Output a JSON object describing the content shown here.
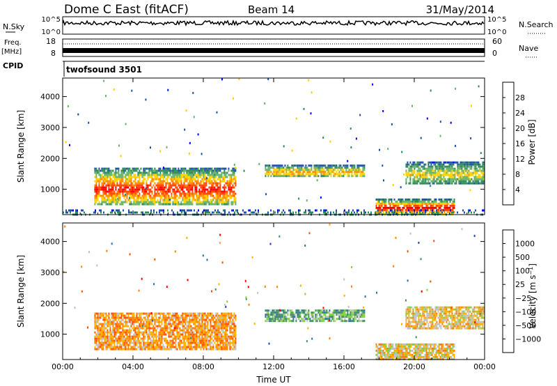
{
  "header": {
    "station": "Dome C East (fitACF)",
    "beam": "Beam 14",
    "date": "31/May/2014"
  },
  "status_panels": {
    "nsky_label": "N.Sky",
    "nsky_ticks": [
      "10^5",
      "10^0"
    ],
    "nsearch_label": "N.Search",
    "nsearch_ticks": [
      "10^5",
      "10^0"
    ],
    "freq_label": "Freq.",
    "freq_unit": "[MHz]",
    "freq_ticks": [
      "18",
      "8"
    ],
    "nave_label": "Nave",
    "nave_ticks": [
      "60",
      "0"
    ],
    "cpid_label": "CPID",
    "cpid_value": "twofsound 3501"
  },
  "colors": {
    "power_scale": [
      "#0000ff",
      "#1f4fa8",
      "#2e8b57",
      "#66b266",
      "#ffd000",
      "#ff8c00",
      "#ff4500",
      "#ff0000"
    ],
    "velocity_scale": [
      "#1f3fbf",
      "#2f6fa0",
      "#3f8f60",
      "#7fcf3f",
      "#c0c0c0",
      "#ffb000",
      "#ff8000",
      "#ff5000",
      "#ff0000"
    ]
  },
  "chart_data": [
    {
      "type": "heatmap",
      "name": "power",
      "ylabel": "Slant Range [km]",
      "x_ticks": [
        "00:00",
        "04:00",
        "08:00",
        "12:00",
        "16:00",
        "20:00",
        "00:00"
      ],
      "y_ticks": [
        "1000",
        "2000",
        "3000",
        "4000"
      ],
      "xlim_hours": [
        0,
        24
      ],
      "ylim_km": [
        180,
        4600
      ],
      "colorbar": {
        "label": "Power [dB]",
        "ticks": [
          "28",
          "24",
          "20",
          "16",
          "12",
          "8",
          "4"
        ],
        "range": [
          0,
          32
        ]
      },
      "echo_regions": [
        {
          "t0": 1.8,
          "t1": 9.8,
          "r0": 500,
          "r1": 1700,
          "peak_db": 28
        },
        {
          "t0": 11.5,
          "t1": 17.2,
          "r0": 1400,
          "r1": 1800,
          "peak_db": 20
        },
        {
          "t0": 17.8,
          "t1": 22.3,
          "r0": 200,
          "r1": 700,
          "peak_db": 30
        },
        {
          "t0": 19.5,
          "t1": 24.0,
          "r0": 1200,
          "r1": 1900,
          "peak_db": 16
        },
        {
          "t0": 0.0,
          "t1": 24.0,
          "r0": 180,
          "r1": 350,
          "peak_db": 6
        }
      ]
    },
    {
      "type": "heatmap",
      "name": "velocity",
      "ylabel": "Slant Range [km]",
      "xlabel": "Time UT",
      "x_ticks": [
        "00:00",
        "04:00",
        "08:00",
        "12:00",
        "16:00",
        "20:00",
        "00:00"
      ],
      "y_ticks": [
        "1000",
        "2000",
        "3000",
        "4000"
      ],
      "xlim_hours": [
        0,
        24
      ],
      "ylim_km": [
        180,
        4600
      ],
      "colorbar": {
        "label": "Velocity [m s^-1]",
        "ticks": [
          "1000",
          "500",
          "100",
          "25",
          "−25",
          "−100",
          "−500",
          "−1000"
        ]
      },
      "echo_regions": [
        {
          "t0": 1.8,
          "t1": 9.8,
          "r0": 500,
          "r1": 1700,
          "velocity": -150
        },
        {
          "t0": 11.5,
          "t1": 17.2,
          "r0": 1400,
          "r1": 1800,
          "velocity": 50
        },
        {
          "t0": 17.8,
          "t1": 22.3,
          "r0": 200,
          "r1": 700,
          "velocity": -50
        },
        {
          "t0": 19.5,
          "t1": 24.0,
          "r0": 1200,
          "r1": 1900,
          "velocity": -100
        }
      ]
    }
  ]
}
